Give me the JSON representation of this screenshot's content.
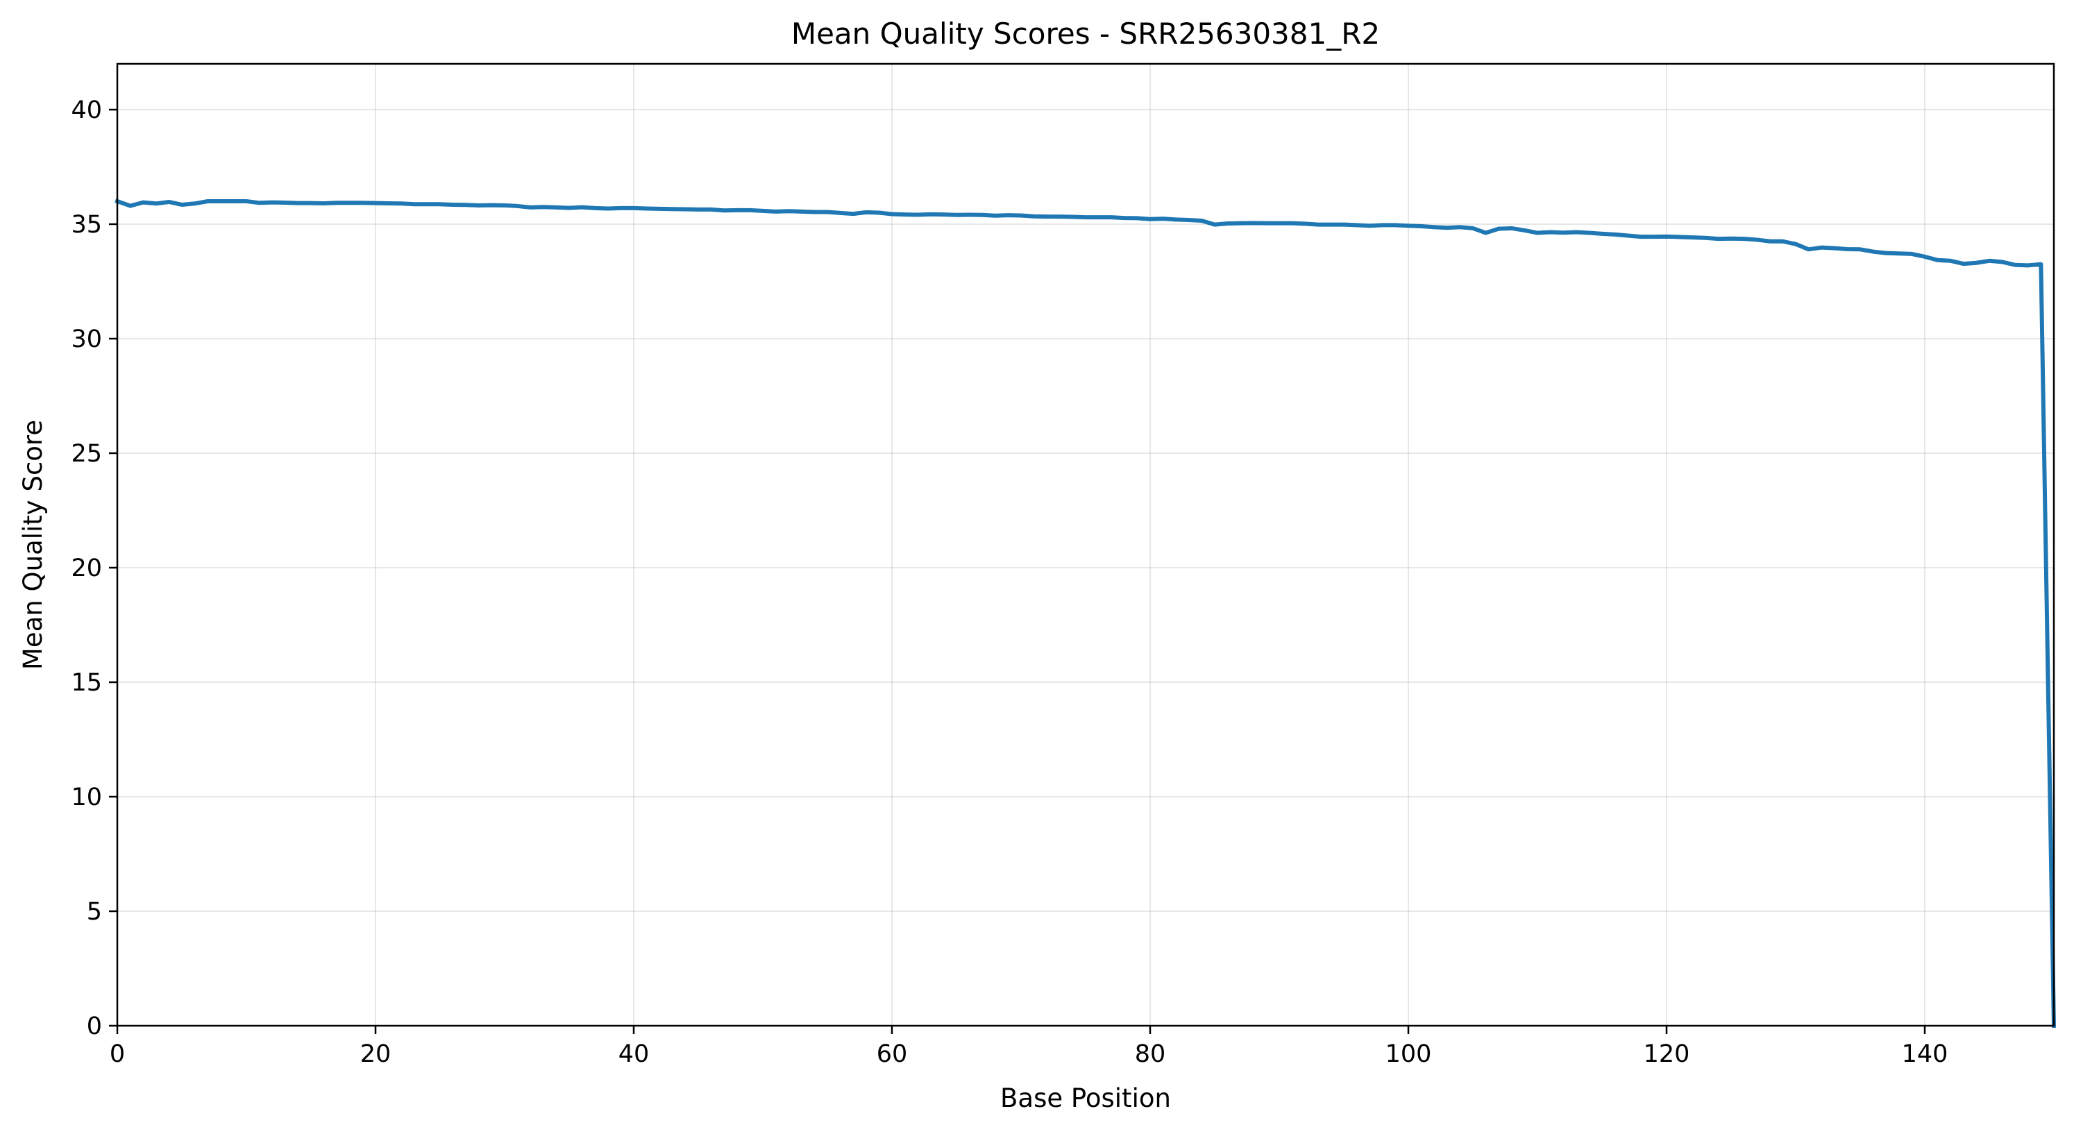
{
  "chart_data": {
    "type": "line",
    "title": "Mean Quality Scores - SRR25630381_R2",
    "xlabel": "Base Position",
    "ylabel": "Mean Quality Score",
    "xlim": [
      0,
      150
    ],
    "ylim": [
      0,
      42
    ],
    "xticks": [
      0,
      20,
      40,
      60,
      80,
      100,
      120,
      140
    ],
    "yticks": [
      0,
      5,
      10,
      15,
      20,
      25,
      30,
      35,
      40
    ],
    "xtick_labels": [
      "0",
      "20",
      "40",
      "60",
      "80",
      "100",
      "120",
      "140"
    ],
    "ytick_labels": [
      "0",
      "5",
      "10",
      "15",
      "20",
      "25",
      "30",
      "35",
      "40"
    ],
    "grid": true,
    "line_color": "#1f77b4",
    "series": [
      {
        "x": [
          0,
          1,
          2,
          3,
          4,
          5,
          6,
          7,
          8,
          9,
          10,
          11,
          12,
          13,
          14,
          15,
          16,
          17,
          18,
          19,
          20,
          21,
          22,
          23,
          24,
          25,
          26,
          27,
          28,
          29,
          30,
          31,
          32,
          33,
          34,
          35,
          36,
          37,
          38,
          39,
          40,
          41,
          42,
          43,
          44,
          45,
          46,
          47,
          48,
          49,
          50,
          51,
          52,
          53,
          54,
          55,
          56,
          57,
          58,
          59,
          60,
          61,
          62,
          63,
          64,
          65,
          66,
          67,
          68,
          69,
          70,
          71,
          72,
          73,
          74,
          75,
          76,
          77,
          78,
          79,
          80,
          81,
          82,
          83,
          84,
          85,
          86,
          87,
          88,
          89,
          90,
          91,
          92,
          93,
          94,
          95,
          96,
          97,
          98,
          99,
          100,
          101,
          102,
          103,
          104,
          105,
          106,
          107,
          108,
          109,
          110,
          111,
          112,
          113,
          114,
          115,
          116,
          117,
          118,
          119,
          120,
          121,
          122,
          123,
          124,
          125,
          126,
          127,
          128,
          129,
          130,
          131,
          132,
          133,
          134,
          135,
          136,
          137,
          138,
          139,
          140,
          141,
          142,
          143,
          144,
          145,
          146,
          147,
          148,
          149,
          150
        ],
        "values": [
          36.0,
          35.8,
          35.95,
          35.9,
          35.97,
          35.85,
          35.9,
          36.0,
          36.0,
          36.0,
          36.0,
          35.93,
          35.95,
          35.94,
          35.92,
          35.92,
          35.91,
          35.93,
          35.93,
          35.93,
          35.92,
          35.91,
          35.9,
          35.87,
          35.87,
          35.87,
          35.85,
          35.84,
          35.82,
          35.83,
          35.82,
          35.79,
          35.73,
          35.75,
          35.73,
          35.71,
          35.74,
          35.7,
          35.68,
          35.7,
          35.7,
          35.68,
          35.67,
          35.66,
          35.65,
          35.64,
          35.64,
          35.6,
          35.61,
          35.61,
          35.58,
          35.55,
          35.57,
          35.55,
          35.53,
          35.53,
          35.49,
          35.45,
          35.52,
          35.5,
          35.44,
          35.42,
          35.41,
          35.43,
          35.42,
          35.4,
          35.41,
          35.4,
          35.37,
          35.39,
          35.38,
          35.34,
          35.33,
          35.33,
          35.32,
          35.3,
          35.3,
          35.3,
          35.27,
          35.26,
          35.22,
          35.24,
          35.2,
          35.18,
          35.15,
          34.98,
          35.03,
          35.04,
          35.05,
          35.04,
          35.04,
          35.04,
          35.02,
          34.98,
          34.98,
          34.98,
          34.96,
          34.93,
          34.96,
          34.96,
          34.93,
          34.91,
          34.87,
          34.84,
          34.87,
          34.82,
          34.62,
          34.8,
          34.82,
          34.73,
          34.62,
          34.65,
          34.63,
          34.65,
          34.62,
          34.58,
          34.55,
          34.5,
          34.45,
          34.45,
          34.46,
          34.44,
          34.42,
          34.4,
          34.36,
          34.37,
          34.36,
          34.32,
          34.25,
          34.25,
          34.13,
          33.9,
          33.98,
          33.95,
          33.91,
          33.9,
          33.8,
          33.74,
          33.72,
          33.7,
          33.58,
          33.43,
          33.4,
          33.27,
          33.31,
          33.4,
          33.35,
          33.22,
          33.2,
          33.25,
          0.0
        ]
      }
    ]
  }
}
